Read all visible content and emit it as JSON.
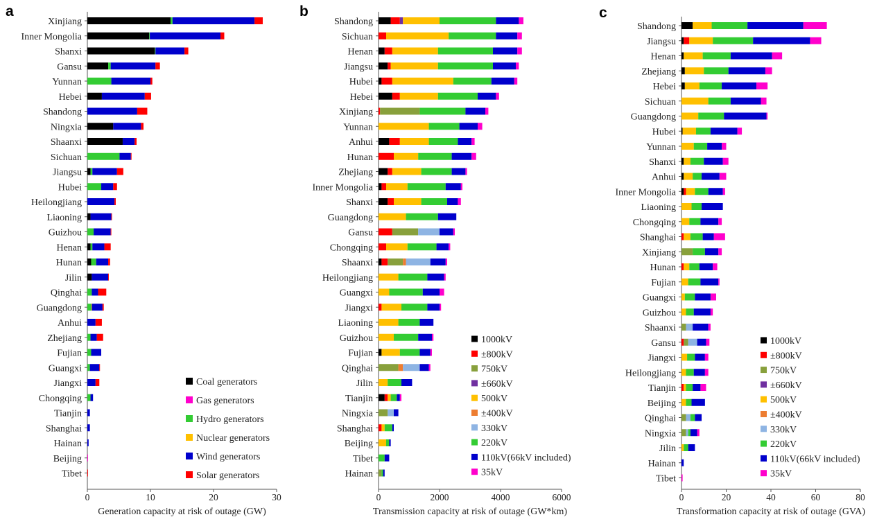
{
  "chart_data": [
    {
      "type": "bar",
      "orientation": "horizontal",
      "stacked": true,
      "panel_label": "a",
      "xlabel": "Generation capacity at risk of outage (GW)",
      "xlim": [
        0,
        30
      ],
      "xticks": [
        "0",
        "10",
        "20",
        "30"
      ],
      "legend_position": "bottom-right",
      "grid": false,
      "categories": [
        "Xinjiang",
        "Inner Mongolia",
        "Shanxi",
        "Gansu",
        "Yunnan",
        "Hebei",
        "Shandong",
        "Ningxia",
        "Shaanxi",
        "Sichuan",
        "Jiangsu",
        "Hubei",
        "Heilongjiang",
        "Liaoning",
        "Guizhou",
        "Henan",
        "Hunan",
        "Jilin",
        "Qinghai",
        "Guangdong",
        "Anhui",
        "Zhejiang",
        "Fujian",
        "Guangxi",
        "Jiangxi",
        "Chongqing",
        "Tianjin",
        "Shanghai",
        "Hainan",
        "Beijing",
        "Tibet"
      ],
      "series": [
        {
          "name": "Coal generators",
          "color": "#000000",
          "values": [
            13.2,
            9.8,
            10.7,
            3.3,
            0,
            2.3,
            0,
            4.1,
            5.6,
            0,
            0.5,
            0,
            0,
            0.5,
            0,
            0.5,
            0.6,
            0.7,
            0,
            0,
            0,
            0,
            0,
            0,
            0,
            0,
            0,
            0,
            0,
            0,
            0
          ]
        },
        {
          "name": "Gas generators",
          "color": "#ff00cc",
          "values": [
            0,
            0,
            0,
            0,
            0,
            0,
            0,
            0,
            0,
            0,
            0,
            0,
            0,
            0,
            0,
            0,
            0,
            0,
            0,
            0,
            0,
            0,
            0,
            0,
            0,
            0,
            0,
            0,
            0,
            0.1,
            0
          ]
        },
        {
          "name": "Hydro generators",
          "color": "#33cc33",
          "values": [
            0.3,
            0.1,
            0.1,
            0.4,
            3.8,
            0,
            0,
            0,
            0,
            5.1,
            0.3,
            2.2,
            0,
            0,
            1.0,
            0.3,
            0.8,
            0,
            0.7,
            0.6,
            0,
            0.5,
            0.6,
            0.4,
            0,
            0.5,
            0,
            0,
            0,
            0,
            0
          ]
        },
        {
          "name": "Nuclear generators",
          "color": "#ffc000",
          "values": [
            0,
            0,
            0,
            0,
            0,
            0,
            0,
            0,
            0,
            0,
            0,
            0,
            0,
            0,
            0,
            0,
            0,
            0,
            0,
            0.1,
            0,
            0,
            0,
            0,
            0,
            0,
            0,
            0,
            0,
            0,
            0
          ]
        },
        {
          "name": "Wind generators",
          "color": "#0000cc",
          "values": [
            13.0,
            11.2,
            4.6,
            7.1,
            6.2,
            6.8,
            7.9,
            4.4,
            1.9,
            1.8,
            3.9,
            1.9,
            4.3,
            3.3,
            2.7,
            1.9,
            1.9,
            2.6,
            1.0,
            1.7,
            1.3,
            1.0,
            1.6,
            1.5,
            1.3,
            0.4,
            0.4,
            0.4,
            0.2,
            0,
            0
          ]
        },
        {
          "name": "Solar generators",
          "color": "#ff0000",
          "values": [
            1.3,
            0.6,
            0.6,
            0.7,
            0.3,
            1.0,
            1.6,
            0.4,
            0.3,
            0.1,
            1.0,
            0.6,
            0.2,
            0.1,
            0.1,
            1.0,
            0.3,
            0.1,
            1.3,
            0.2,
            1.0,
            1.0,
            0,
            0.1,
            0.6,
            0,
            0,
            0,
            0,
            0,
            0.1
          ]
        }
      ]
    },
    {
      "type": "bar",
      "orientation": "horizontal",
      "stacked": true,
      "panel_label": "b",
      "xlabel": "Transmission capacity at risk of outage (GW*km)",
      "xlim": [
        0,
        6000
      ],
      "xticks": [
        "0",
        "2000",
        "4000",
        "6000"
      ],
      "legend_position": "bottom-right",
      "grid": false,
      "categories": [
        "Shandong",
        "Sichuan",
        "Henan",
        "Jiangsu",
        "Hubei",
        "Hebei",
        "Xinjiang",
        "Yunnan",
        "Anhui",
        "Hunan",
        "Zhejiang",
        "Inner Mongolia",
        "Shanxi",
        "Guangdong",
        "Gansu",
        "Chongqing",
        "Shaanxi",
        "Heilongjiang",
        "Guangxi",
        "Jiangxi",
        "Liaoning",
        "Guizhou",
        "Fujian",
        "Qinghai",
        "Jilin",
        "Tianjin",
        "Ningxia",
        "Shanghai",
        "Beijing",
        "Tibet",
        "Hainan"
      ],
      "series": [
        {
          "name": "1000kV",
          "color": "#000000",
          "values": [
            400,
            0,
            200,
            300,
            100,
            450,
            0,
            0,
            350,
            0,
            300,
            100,
            300,
            0,
            0,
            0,
            100,
            0,
            0,
            0,
            0,
            0,
            100,
            0,
            0,
            200,
            0,
            0,
            0,
            0,
            0
          ]
        },
        {
          "name": "±800kV",
          "color": "#ff0000",
          "values": [
            300,
            250,
            250,
            100,
            350,
            250,
            50,
            0,
            350,
            500,
            150,
            150,
            200,
            0,
            450,
            250,
            200,
            0,
            0,
            100,
            0,
            0,
            0,
            0,
            0,
            100,
            0,
            100,
            0,
            0,
            0
          ]
        },
        {
          "name": "750kV",
          "color": "#88a03c",
          "values": [
            0,
            0,
            0,
            0,
            0,
            0,
            1300,
            0,
            0,
            0,
            0,
            0,
            0,
            0,
            850,
            0,
            500,
            0,
            0,
            0,
            0,
            0,
            0,
            650,
            0,
            0,
            300,
            0,
            0,
            0,
            100
          ]
        },
        {
          "name": "±660kV",
          "color": "#7030a0",
          "values": [
            100,
            0,
            0,
            0,
            0,
            0,
            0,
            0,
            0,
            0,
            0,
            0,
            0,
            0,
            0,
            0,
            0,
            0,
            0,
            0,
            0,
            0,
            0,
            0,
            0,
            0,
            0,
            0,
            0,
            0,
            0
          ]
        },
        {
          "name": "500kV",
          "color": "#ffc000",
          "values": [
            1200,
            2050,
            1500,
            1550,
            2000,
            1250,
            0,
            1650,
            950,
            800,
            950,
            700,
            900,
            900,
            0,
            700,
            0,
            650,
            350,
            650,
            650,
            500,
            600,
            0,
            300,
            100,
            0,
            100,
            250,
            0,
            0
          ]
        },
        {
          "name": "±400kV",
          "color": "#ed7d31",
          "values": [
            0,
            0,
            0,
            0,
            0,
            0,
            0,
            0,
            0,
            0,
            0,
            0,
            0,
            0,
            0,
            0,
            100,
            0,
            0,
            0,
            0,
            0,
            0,
            150,
            0,
            0,
            0,
            0,
            0,
            0,
            0
          ]
        },
        {
          "name": "330kV",
          "color": "#8eb4e3",
          "values": [
            0,
            0,
            0,
            0,
            0,
            0,
            0,
            0,
            0,
            0,
            0,
            0,
            0,
            0,
            700,
            0,
            800,
            0,
            0,
            0,
            0,
            0,
            0,
            550,
            0,
            0,
            200,
            0,
            0,
            0,
            0
          ]
        },
        {
          "name": "220kV",
          "color": "#33cc33",
          "values": [
            1850,
            1550,
            1800,
            1800,
            1250,
            1300,
            1500,
            1000,
            950,
            1100,
            1000,
            1250,
            850,
            1050,
            0,
            950,
            0,
            950,
            1100,
            850,
            700,
            800,
            650,
            0,
            450,
            200,
            0,
            250,
            100,
            200,
            50
          ]
        },
        {
          "name": "110kV(66kV included)",
          "color": "#0000cc",
          "values": [
            750,
            700,
            800,
            750,
            750,
            600,
            650,
            600,
            450,
            650,
            450,
            500,
            350,
            600,
            450,
            400,
            500,
            550,
            550,
            400,
            450,
            450,
            350,
            300,
            350,
            100,
            150,
            50,
            50,
            150,
            50
          ]
        },
        {
          "name": "35kV",
          "color": "#ff00cc",
          "values": [
            150,
            150,
            150,
            100,
            100,
            100,
            100,
            150,
            100,
            150,
            50,
            50,
            100,
            0,
            50,
            50,
            50,
            50,
            150,
            50,
            0,
            50,
            50,
            50,
            0,
            50,
            0,
            0,
            0,
            0,
            0
          ]
        }
      ]
    },
    {
      "type": "bar",
      "orientation": "horizontal",
      "stacked": true,
      "panel_label": "c",
      "xlabel": "Transformation capacity at risk of outage (GVA)",
      "xlim": [
        0,
        80
      ],
      "xticks": [
        "0",
        "20",
        "40",
        "60",
        "80"
      ],
      "legend_position": "bottom-right",
      "grid": false,
      "categories": [
        "Shandong",
        "Jiangsu",
        "Henan",
        "Zhejiang",
        "Hebei",
        "Sichuan",
        "Guangdong",
        "Hubei",
        "Yunnan",
        "Shanxi",
        "Anhui",
        "Inner Mongolia",
        "Liaoning",
        "Chongqing",
        "Shanghai",
        "Xinjiang",
        "Hunan",
        "Fujian",
        "Guangxi",
        "Guizhou",
        "Shaanxi",
        "Gansu",
        "Jiangxi",
        "Heilongjiang",
        "Tianjin",
        "Beijing",
        "Qinghai",
        "Ningxia",
        "Jilin",
        "Hainan",
        "Tibet"
      ],
      "series": [
        {
          "name": "1000kV",
          "color": "#000000",
          "values": [
            5,
            1,
            1,
            1.5,
            1.5,
            0,
            0,
            0.5,
            0,
            1,
            1,
            1,
            0,
            0,
            0,
            0,
            0,
            0,
            0,
            0,
            0,
            0,
            0,
            0,
            0,
            0,
            0,
            0,
            0,
            0,
            0
          ]
        },
        {
          "name": "±800kV",
          "color": "#ff0000",
          "values": [
            0,
            2.5,
            0,
            0,
            0,
            0,
            0,
            0,
            0,
            0,
            0,
            1,
            0,
            0,
            1,
            0,
            1,
            0,
            0,
            0,
            0,
            1,
            0,
            0,
            1,
            0,
            0,
            0,
            0,
            0,
            0
          ]
        },
        {
          "name": "750kV",
          "color": "#88a03c",
          "values": [
            0,
            0,
            0,
            0,
            0,
            0,
            0,
            0,
            0,
            0,
            0,
            0,
            0,
            0,
            0,
            5,
            0,
            0,
            0,
            0,
            2,
            2,
            0,
            0,
            0,
            0,
            2,
            2,
            0,
            0,
            0
          ]
        },
        {
          "name": "±660kV",
          "color": "#7030a0",
          "values": [
            0,
            0,
            0,
            0,
            0,
            0,
            0,
            0,
            0,
            0,
            0,
            0,
            0,
            0,
            0,
            0,
            0,
            0,
            0,
            0,
            0,
            0,
            0,
            0,
            0,
            0,
            0,
            0,
            0,
            0,
            0
          ]
        },
        {
          "name": "500kV",
          "color": "#ffc000",
          "values": [
            8.5,
            10.5,
            8.5,
            8.5,
            6.5,
            12,
            7.5,
            6,
            5.5,
            3,
            4,
            4,
            4.5,
            3.5,
            3,
            0,
            2.5,
            3,
            1.5,
            2,
            0,
            0,
            2.5,
            2,
            1,
            2,
            0,
            0,
            1,
            0,
            0
          ]
        },
        {
          "name": "±400kV",
          "color": "#ed7d31",
          "values": [
            0,
            0,
            0,
            0,
            0,
            0,
            0,
            0,
            0,
            0,
            0,
            0,
            0,
            0,
            0,
            0,
            0,
            0,
            0,
            0,
            0,
            0,
            0,
            0,
            0,
            0,
            0,
            0,
            0,
            0,
            0
          ]
        },
        {
          "name": "330kV",
          "color": "#8eb4e3",
          "values": [
            0,
            0,
            0,
            0,
            0,
            0,
            0,
            0,
            0,
            0,
            0,
            0,
            0,
            0,
            0,
            0,
            0,
            0,
            0,
            0,
            3,
            4,
            0,
            0,
            0,
            0,
            2,
            1,
            0,
            0,
            0
          ]
        },
        {
          "name": "220kV",
          "color": "#33cc33",
          "values": [
            16,
            18,
            12.5,
            11,
            10,
            10,
            11.5,
            6.5,
            6,
            6,
            4,
            6,
            4.5,
            5,
            5.5,
            5.5,
            4.5,
            5.5,
            4.5,
            3.5,
            0,
            0,
            3.5,
            3.5,
            3,
            2.5,
            2,
            1,
            2,
            0,
            0
          ]
        },
        {
          "name": "110kV(66kV included)",
          "color": "#0000cc",
          "values": [
            25,
            25.5,
            18.5,
            16.5,
            15.5,
            13.5,
            19,
            12,
            6.5,
            8.5,
            8,
            6.5,
            9.5,
            8,
            5,
            6,
            6,
            8,
            7,
            7.5,
            7,
            4,
            4.5,
            5,
            3.5,
            6,
            3,
            3,
            3,
            1,
            0
          ]
        },
        {
          "name": "35kV",
          "color": "#ff00cc",
          "values": [
            10.5,
            5,
            4.5,
            3,
            5,
            2.5,
            0.5,
            2,
            2,
            2.5,
            3,
            1,
            0,
            1.5,
            5,
            1.5,
            2,
            0.5,
            2.5,
            1,
            1,
            1.5,
            1.5,
            1.5,
            2.5,
            0,
            0,
            1,
            0,
            0,
            0.5
          ]
        }
      ]
    }
  ]
}
